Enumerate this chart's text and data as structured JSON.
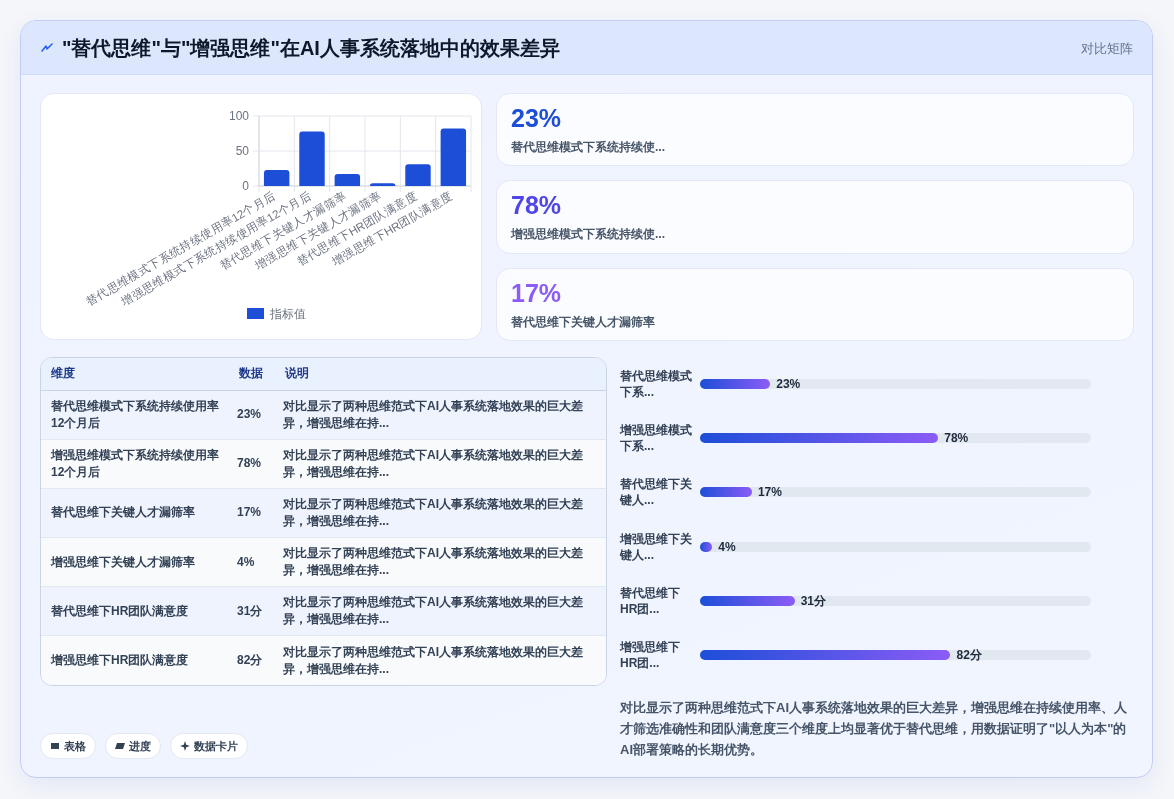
{
  "chart_data": [
    {
      "type": "other",
      "title": "\"替代思维\"与\"增强思维\"在AI人事系统落地中的效果差异",
      "subtitle": "对比矩阵"
    },
    {
      "type": "bar",
      "categories": [
        "替代思维模式下系统持续使用率12个月后",
        "增强思维模式下系统持续使用率12个月后",
        "替代思维下关键人才漏筛率",
        "增强思维下关键人才漏筛率",
        "替代思维下HR团队满意度",
        "增强思维下HR团队满意度"
      ],
      "series": [
        {
          "name": "指标值",
          "color": "#1d4ed8",
          "values": [
            23,
            78,
            17,
            4,
            31,
            82
          ]
        }
      ],
      "ylim": [
        0,
        100
      ],
      "yticks": [
        0,
        50,
        100
      ],
      "grid": true,
      "legend": "bottom"
    },
    {
      "type": "other",
      "annotations": [
        "23%",
        "替代思维模式下系统持续使...",
        "78%",
        "增强思维模式下系统持续使...",
        "17%",
        "替代思维下关键人才漏筛率"
      ]
    },
    {
      "type": "other",
      "categories": [
        "替代思维模式下系统持续使用率12个月后",
        "增强思维模式下系统持续使用率12个月后",
        "替代思维下关键人才漏筛率",
        "增强思维下关键人才漏筛率",
        "替代思维下HR团队满意度",
        "增强思维下HR团队满意度"
      ],
      "value_labels": [
        "23%",
        "78%",
        "17%",
        "4%",
        "31分",
        "82分"
      ],
      "annotations": [
        "维度",
        "数据",
        "说明",
        "对比显示了两种思维范式下AI人事系统落地效果的巨大差异，增强思维在持...",
        "对比显示了两种思维范式下AI人事系统落地效果的巨大差异，增强思维在持...",
        "对比显示了两种思维范式下AI人事系统落地效果的巨大差异，增强思维在持...",
        "对比显示了两种思维范式下AI人事系统落地效果的巨大差异，增强思维在持...",
        "对比显示了两种思维范式下AI人事系统落地效果的巨大差异，增强思维在持...",
        "对比显示了两种思维范式下AI人事系统落地效果的巨大差异，增强思维在持..."
      ]
    },
    {
      "type": "bar",
      "orientation": "horizontal",
      "categories": [
        "替代思维模式下系...",
        "增强思维模式下系...",
        "替代思维下关键人...",
        "增强思维下关键人...",
        "替代思维下HR团...",
        "增强思维下HR团..."
      ],
      "series": [
        {
          "color": "#1d4ed8",
          "values": [
            23,
            78,
            17,
            4,
            31,
            82
          ],
          "value_labels": [
            "23%",
            "78%",
            "17%",
            "4%",
            "31分",
            "82分"
          ]
        }
      ],
      "xlim": [
        0,
        128
      ],
      "tick_labels": "y"
    },
    {
      "type": "other",
      "annotations": [
        "对比显示了两种思维范式下AI人事系统落地效果的巨大差异，增强思维在持续使用率、人才筛选准确性和团队满意度三个维度上均显著优于替代思维，用数据证明了\"以人为本\"的AI部署策略的长期优势。",
        "表格",
        "进度",
        "数据卡片"
      ]
    }
  ]
}
